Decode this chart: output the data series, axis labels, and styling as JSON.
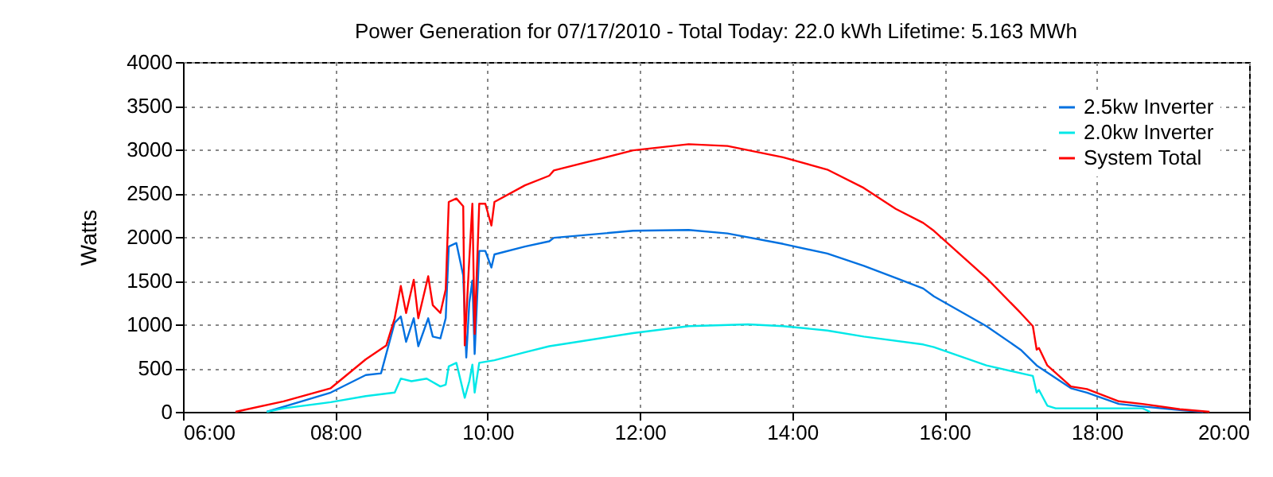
{
  "chart_data": {
    "type": "line",
    "title": "Power Generation for 07/17/2010 - Total Today: 22.0 kWh   Lifetime: 5.163 MWh",
    "ylabel": "Watts",
    "xlim": [
      6,
      20
    ],
    "xticks": [
      {
        "value": 6,
        "label": "06:00"
      },
      {
        "value": 8,
        "label": "08:00"
      },
      {
        "value": 10,
        "label": "10:00"
      },
      {
        "value": 12,
        "label": "12:00"
      },
      {
        "value": 14,
        "label": "14:00"
      },
      {
        "value": 16,
        "label": "16:00"
      },
      {
        "value": 18,
        "label": "18:00"
      },
      {
        "value": 20,
        "label": "20:00"
      }
    ],
    "ylim": [
      0,
      4000
    ],
    "yticks": [
      0,
      500,
      1000,
      1500,
      2000,
      2500,
      3000,
      3500,
      4000
    ],
    "grid": true,
    "legend": "top right",
    "marker": "none",
    "line_style": "solid",
    "series": [
      {
        "name": "2.5kw Inverter",
        "color": "#0070e0",
        "x": [
          7.1,
          7.94,
          8.4,
          8.6,
          8.78,
          8.86,
          8.93,
          9.03,
          9.09,
          9.22,
          9.28,
          9.38,
          9.45,
          9.49,
          9.59,
          9.68,
          9.72,
          9.76,
          9.8,
          9.83,
          9.89,
          9.97,
          10.05,
          10.09,
          10.49,
          10.81,
          10.87,
          11.91,
          12.64,
          13.15,
          13.88,
          14.46,
          14.94,
          15.36,
          15.72,
          15.86,
          16.55,
          17.0,
          17.21,
          17.66,
          17.87,
          18.29,
          18.6,
          19.09,
          19.4
        ],
        "values": [
          0,
          220,
          420,
          440,
          1020,
          1090,
          800,
          1070,
          750,
          1070,
          860,
          840,
          1070,
          1890,
          1930,
          1560,
          620,
          1250,
          1500,
          660,
          1840,
          1840,
          1650,
          1800,
          1890,
          1950,
          1990,
          2070,
          2080,
          2040,
          1920,
          1810,
          1670,
          1530,
          1410,
          1320,
          980,
          710,
          530,
          270,
          220,
          90,
          60,
          20,
          0
        ]
      },
      {
        "name": "2.0kw Inverter",
        "color": "#00e8e8",
        "x": [
          7.1,
          7.32,
          7.94,
          8.4,
          8.78,
          8.86,
          9.0,
          9.2,
          9.38,
          9.45,
          9.49,
          9.59,
          9.7,
          9.76,
          9.8,
          9.83,
          9.89,
          10.09,
          10.49,
          10.81,
          11.18,
          11.91,
          12.64,
          13.42,
          13.88,
          14.46,
          14.94,
          15.72,
          15.86,
          16.55,
          17.16,
          17.21,
          17.24,
          17.35,
          17.46,
          18.6,
          18.7
        ],
        "values": [
          0,
          40,
          110,
          180,
          220,
          380,
          350,
          380,
          290,
          310,
          520,
          560,
          160,
          350,
          540,
          220,
          560,
          590,
          680,
          750,
          800,
          900,
          980,
          1000,
          980,
          930,
          860,
          770,
          740,
          530,
          410,
          220,
          250,
          70,
          40,
          40,
          0
        ]
      },
      {
        "name": "System Total",
        "color": "#ff0000",
        "x": [
          6.69,
          7.32,
          7.94,
          8.4,
          8.67,
          8.78,
          8.86,
          8.93,
          9.03,
          9.09,
          9.22,
          9.28,
          9.38,
          9.45,
          9.49,
          9.59,
          9.68,
          9.7,
          9.76,
          9.8,
          9.83,
          9.89,
          9.97,
          10.05,
          10.09,
          10.49,
          10.81,
          10.87,
          11.91,
          12.64,
          13.15,
          13.88,
          14.46,
          14.94,
          15.36,
          15.72,
          15.86,
          16.55,
          17.0,
          17.16,
          17.21,
          17.24,
          17.35,
          17.66,
          17.87,
          18.29,
          18.6,
          19.09,
          19.48
        ],
        "values": [
          0,
          120,
          270,
          600,
          760,
          1070,
          1440,
          1130,
          1510,
          1070,
          1550,
          1220,
          1130,
          1400,
          2400,
          2440,
          2350,
          760,
          1750,
          2380,
          890,
          2380,
          2380,
          2130,
          2400,
          2590,
          2700,
          2760,
          2990,
          3060,
          3040,
          2910,
          2770,
          2560,
          2320,
          2160,
          2070,
          1530,
          1130,
          980,
          710,
          730,
          530,
          290,
          260,
          120,
          90,
          30,
          0
        ]
      }
    ]
  }
}
